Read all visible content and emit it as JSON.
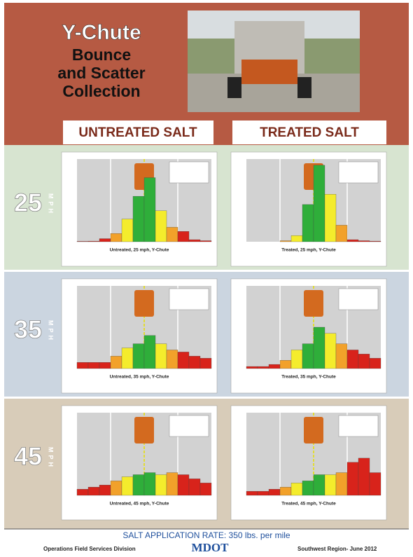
{
  "header": {
    "title_lines": [
      "Y-Chute",
      "Bounce",
      "and Scatter",
      "Collection"
    ]
  },
  "columns": [
    "UNTREATED SALT",
    "TREATED SALT"
  ],
  "speed_unit": "MPH",
  "ylim": [
    0,
    40
  ],
  "bar_colors": [
    "#d8231b",
    "#d8231b",
    "#d8231b",
    "#f2a12a",
    "#f4ec2c",
    "#2fae3a",
    "#2fae3a",
    "#f4ec2c",
    "#f2a12a",
    "#d8231b",
    "#d8231b",
    "#d8231b"
  ],
  "rows": [
    {
      "speed": "25",
      "charts": [
        {
          "caption": "Untreated, 25 mph, Y-Chute",
          "values": [
            0.2,
            0.3,
            1.5,
            4,
            11,
            22,
            31,
            15,
            7,
            5,
            1,
            0.5
          ]
        },
        {
          "caption": "Treated, 25 mph, Y-Chute",
          "values": [
            0,
            0,
            0,
            0.5,
            3,
            18,
            37,
            23,
            8,
            1,
            0.5,
            0.3
          ]
        }
      ]
    },
    {
      "speed": "35",
      "charts": [
        {
          "caption": "Untreated, 35 mph, Y-Chute",
          "values": [
            3,
            3,
            3,
            6,
            10,
            12,
            16,
            12,
            9,
            8,
            6,
            5
          ]
        },
        {
          "caption": "Treated, 35 mph, Y-Chute",
          "values": [
            1,
            1,
            2,
            4,
            9,
            12,
            20,
            17,
            12,
            9,
            7,
            5
          ]
        }
      ]
    },
    {
      "speed": "45",
      "charts": [
        {
          "caption": "Untreated, 45 mph, Y-Chute",
          "values": [
            3,
            4,
            5,
            7,
            9,
            10,
            11,
            10,
            11,
            10,
            8,
            6
          ]
        },
        {
          "caption": "Treated, 45 mph, Y-Chute",
          "values": [
            2,
            2,
            3,
            4,
            6,
            7,
            10,
            10,
            11,
            16,
            18,
            11
          ]
        }
      ]
    }
  ],
  "footer": {
    "rate": "SALT APPLICATION RATE: 350 lbs. per mile",
    "left": "Operations Field Services Division",
    "logo": "MDOT",
    "right": "Southwest Region- June 2012"
  }
}
